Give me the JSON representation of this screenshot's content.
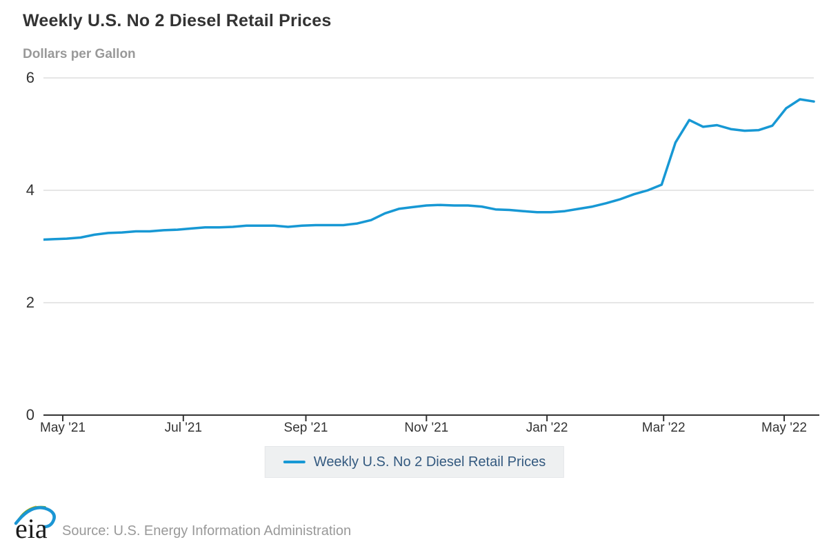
{
  "title": "Weekly U.S. No 2 Diesel Retail Prices",
  "subtitle": "Dollars per Gallon",
  "legend": {
    "label": "Weekly U.S. No 2 Diesel Retail Prices"
  },
  "footer": {
    "logo_text": "eia",
    "source": "Source: U.S. Energy Information Administration"
  },
  "colors": {
    "line": "#1798d4",
    "gridline": "#cccccc",
    "axis": "#333333",
    "title_text": "#333333",
    "subtitle_text": "#999999",
    "legend_text": "#33597f",
    "legend_background": "#eef0f1",
    "source_text": "#999999"
  },
  "chart_data": {
    "type": "line",
    "title": "Weekly U.S. No 2 Diesel Retail Prices",
    "ylabel": "Dollars per Gallon",
    "xlabel": "",
    "ylim": [
      0,
      6
    ],
    "grid": true,
    "legend_position": "bottom",
    "y_ticks": [
      0,
      2,
      4,
      6
    ],
    "x_ticks": [
      {
        "date": "2021-05-01",
        "label": "May '21"
      },
      {
        "date": "2021-07-01",
        "label": "Jul '21"
      },
      {
        "date": "2021-09-01",
        "label": "Sep '21"
      },
      {
        "date": "2021-11-01",
        "label": "Nov '21"
      },
      {
        "date": "2022-01-01",
        "label": "Jan '22"
      },
      {
        "date": "2022-03-01",
        "label": "Mar '22"
      },
      {
        "date": "2022-05-01",
        "label": "May '22"
      }
    ],
    "series": [
      {
        "name": "Weekly U.S. No 2 Diesel Retail Prices",
        "x": [
          "2021-04-19",
          "2021-04-26",
          "2021-05-03",
          "2021-05-10",
          "2021-05-17",
          "2021-05-24",
          "2021-05-31",
          "2021-06-07",
          "2021-06-14",
          "2021-06-21",
          "2021-06-28",
          "2021-07-05",
          "2021-07-12",
          "2021-07-19",
          "2021-07-26",
          "2021-08-02",
          "2021-08-09",
          "2021-08-16",
          "2021-08-23",
          "2021-08-30",
          "2021-09-06",
          "2021-09-13",
          "2021-09-20",
          "2021-09-27",
          "2021-10-04",
          "2021-10-11",
          "2021-10-18",
          "2021-10-25",
          "2021-11-01",
          "2021-11-08",
          "2021-11-15",
          "2021-11-22",
          "2021-11-29",
          "2021-12-06",
          "2021-12-13",
          "2021-12-20",
          "2021-12-27",
          "2022-01-03",
          "2022-01-10",
          "2022-01-17",
          "2022-01-24",
          "2022-01-31",
          "2022-02-07",
          "2022-02-14",
          "2022-02-21",
          "2022-02-28",
          "2022-03-07",
          "2022-03-14",
          "2022-03-21",
          "2022-03-28",
          "2022-04-04",
          "2022-04-11",
          "2022-04-18",
          "2022-04-25",
          "2022-05-02",
          "2022-05-09",
          "2022-05-16"
        ],
        "values": [
          3.12,
          3.13,
          3.14,
          3.16,
          3.21,
          3.24,
          3.25,
          3.27,
          3.27,
          3.29,
          3.3,
          3.32,
          3.34,
          3.34,
          3.35,
          3.37,
          3.37,
          3.37,
          3.35,
          3.37,
          3.38,
          3.38,
          3.38,
          3.41,
          3.47,
          3.59,
          3.67,
          3.7,
          3.73,
          3.74,
          3.73,
          3.73,
          3.71,
          3.66,
          3.65,
          3.63,
          3.61,
          3.61,
          3.63,
          3.67,
          3.71,
          3.77,
          3.84,
          3.93,
          4.0,
          4.1,
          4.85,
          5.25,
          5.13,
          5.16,
          5.09,
          5.06,
          5.07,
          5.15,
          5.46,
          5.62,
          5.58
        ]
      }
    ]
  }
}
